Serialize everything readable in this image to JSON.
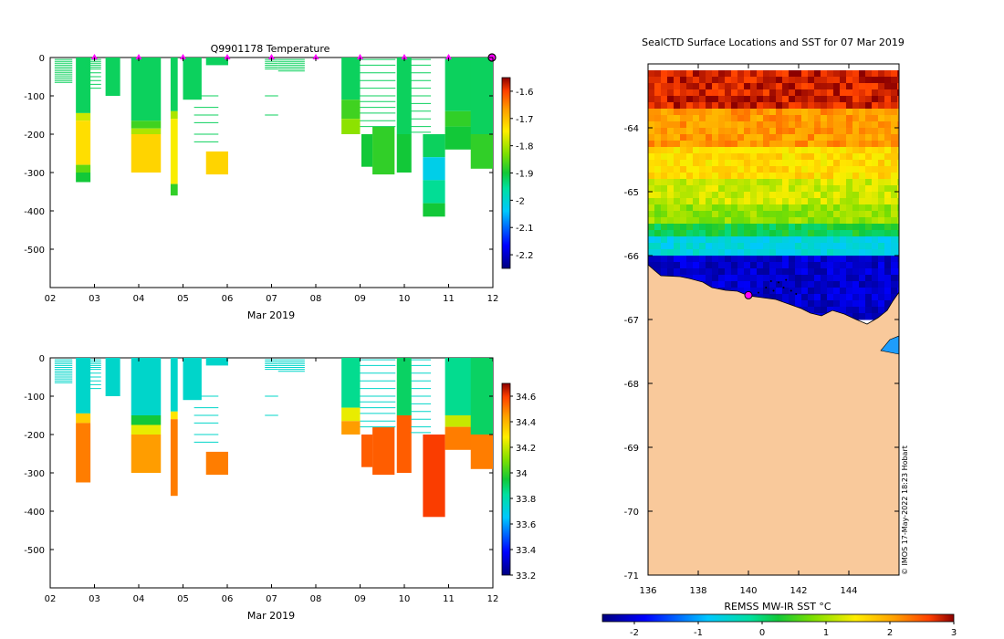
{
  "chart_data": [
    {
      "id": "temperature",
      "type": "heatmap",
      "title": "Q9901178  Temperature",
      "xlabel": "Mar 2019",
      "ylabel": "",
      "x_ticks": [
        "02",
        "03",
        "04",
        "05",
        "06",
        "07",
        "08",
        "09",
        "10",
        "11",
        "12"
      ],
      "xlim": [
        2,
        12
      ],
      "y_ticks": [
        0,
        -100,
        -200,
        -300,
        -400,
        -500
      ],
      "ylim": [
        -600,
        0
      ],
      "colorbar": {
        "ticks": [
          -1.6,
          -1.7,
          -1.8,
          -1.9,
          -2,
          -2.1,
          -2.2
        ],
        "range": [
          -2.25,
          -1.55
        ]
      },
      "surface_markers_day": [
        3,
        4,
        5,
        6,
        7,
        8,
        9,
        10,
        11
      ],
      "profiles": [
        {
          "day": 2.58,
          "width": 0.33,
          "max_depth": -325,
          "bands": [
            [
              0,
              -145,
              -1.92
            ],
            [
              -145,
              -165,
              -1.78
            ],
            [
              -165,
              -280,
              -1.73
            ],
            [
              -280,
              -300,
              -1.85
            ],
            [
              -300,
              -325,
              -1.9
            ]
          ]
        },
        {
          "day": 3.25,
          "width": 0.33,
          "max_depth": -100,
          "bands": [
            [
              0,
              -100,
              -1.92
            ]
          ]
        },
        {
          "day": 3.83,
          "width": 0.67,
          "max_depth": -300,
          "bands": [
            [
              0,
              -165,
              -1.92
            ],
            [
              -165,
              -185,
              -1.87
            ],
            [
              -185,
              -200,
              -1.8
            ],
            [
              -200,
              -300,
              -1.72
            ]
          ]
        },
        {
          "day": 4.72,
          "width": 0.16,
          "max_depth": -360,
          "bands": [
            [
              0,
              -140,
              -1.92
            ],
            [
              -140,
              -160,
              -1.8
            ],
            [
              -160,
              -330,
              -1.75
            ],
            [
              -330,
              -360,
              -1.88
            ]
          ]
        },
        {
          "day": 5.0,
          "width": 0.42,
          "max_depth": -110,
          "bands": [
            [
              0,
              -110,
              -1.92
            ]
          ]
        },
        {
          "day": 5.52,
          "width": 0.5,
          "max_depth": -20,
          "bands": [
            [
              0,
              -20,
              -1.92
            ]
          ]
        },
        {
          "day": 5.52,
          "width": 0.5,
          "max_depth": -305,
          "bands": [
            [
              -245,
              -305,
              -1.72
            ]
          ]
        },
        {
          "day": 8.58,
          "width": 0.42,
          "max_depth": -200,
          "bands": [
            [
              0,
              -110,
              -1.92
            ],
            [
              -110,
              -160,
              -1.87
            ],
            [
              -160,
              -200,
              -1.82
            ]
          ]
        },
        {
          "day": 9.03,
          "width": 0.25,
          "max_depth": -285,
          "bands": [
            [
              -200,
              -285,
              -1.9
            ]
          ]
        },
        {
          "day": 9.28,
          "width": 0.5,
          "max_depth": -305,
          "bands": [
            [
              -180,
              -305,
              -1.88
            ]
          ]
        },
        {
          "day": 9.83,
          "width": 0.33,
          "max_depth": -300,
          "bands": [
            [
              0,
              -200,
              -1.92
            ],
            [
              -200,
              -300,
              -1.9
            ]
          ]
        },
        {
          "day": 10.42,
          "width": 0.5,
          "max_depth": -415,
          "bands": [
            [
              -200,
              -260,
              -1.92
            ],
            [
              -260,
              -320,
              -2.02
            ],
            [
              -320,
              -380,
              -1.95
            ],
            [
              -380,
              -415,
              -1.9
            ]
          ]
        },
        {
          "day": 10.92,
          "width": 0.6,
          "max_depth": -240,
          "bands": [
            [
              0,
              -140,
              -1.92
            ],
            [
              -140,
              -180,
              -1.88
            ],
            [
              -180,
              -240,
              -1.9
            ]
          ]
        },
        {
          "day": 11.5,
          "width": 0.5,
          "max_depth": -290,
          "bands": [
            [
              0,
              -200,
              -1.92
            ],
            [
              -200,
              -290,
              -1.88
            ]
          ]
        }
      ]
    },
    {
      "id": "salinity",
      "type": "heatmap",
      "title": "",
      "xlabel": "Mar 2019",
      "ylabel": "",
      "x_ticks": [
        "02",
        "03",
        "04",
        "05",
        "06",
        "07",
        "08",
        "09",
        "10",
        "11",
        "12"
      ],
      "xlim": [
        2,
        12
      ],
      "y_ticks": [
        0,
        -100,
        -200,
        -300,
        -400,
        -500
      ],
      "ylim": [
        -600,
        0
      ],
      "colorbar": {
        "ticks": [
          34.6,
          34.4,
          34.2,
          34,
          33.8,
          33.6,
          33.4,
          33.2
        ],
        "range": [
          33.2,
          34.7
        ]
      },
      "profiles": [
        {
          "day": 2.58,
          "width": 0.33,
          "max_depth": -325,
          "bands": [
            [
              0,
              -145,
              33.75
            ],
            [
              -145,
              -170,
              34.35
            ],
            [
              -170,
              -325,
              34.5
            ]
          ]
        },
        {
          "day": 3.25,
          "width": 0.33,
          "max_depth": -100,
          "bands": [
            [
              0,
              -100,
              33.75
            ]
          ]
        },
        {
          "day": 3.83,
          "width": 0.67,
          "max_depth": -300,
          "bands": [
            [
              0,
              -150,
              33.75
            ],
            [
              -150,
              -175,
              33.95
            ],
            [
              -175,
              -200,
              34.25
            ],
            [
              -200,
              -300,
              34.45
            ]
          ]
        },
        {
          "day": 4.72,
          "width": 0.16,
          "max_depth": -360,
          "bands": [
            [
              0,
              -140,
              33.75
            ],
            [
              -140,
              -160,
              34.3
            ],
            [
              -160,
              -360,
              34.5
            ]
          ]
        },
        {
          "day": 5.0,
          "width": 0.42,
          "max_depth": -110,
          "bands": [
            [
              0,
              -110,
              33.75
            ]
          ]
        },
        {
          "day": 5.52,
          "width": 0.5,
          "max_depth": -20,
          "bands": [
            [
              0,
              -20,
              33.75
            ]
          ]
        },
        {
          "day": 5.52,
          "width": 0.5,
          "max_depth": -305,
          "bands": [
            [
              -245,
              -305,
              34.5
            ]
          ]
        },
        {
          "day": 8.58,
          "width": 0.42,
          "max_depth": -200,
          "bands": [
            [
              0,
              -130,
              33.85
            ],
            [
              -130,
              -165,
              34.25
            ],
            [
              -165,
              -200,
              34.45
            ]
          ]
        },
        {
          "day": 9.03,
          "width": 0.25,
          "max_depth": -285,
          "bands": [
            [
              -200,
              -285,
              34.55
            ]
          ]
        },
        {
          "day": 9.28,
          "width": 0.5,
          "max_depth": -305,
          "bands": [
            [
              -180,
              -305,
              34.55
            ]
          ]
        },
        {
          "day": 9.83,
          "width": 0.33,
          "max_depth": -300,
          "bands": [
            [
              0,
              -150,
              33.9
            ],
            [
              -150,
              -300,
              34.55
            ]
          ]
        },
        {
          "day": 10.42,
          "width": 0.5,
          "max_depth": -415,
          "bands": [
            [
              -200,
              -415,
              34.6
            ]
          ]
        },
        {
          "day": 10.92,
          "width": 0.6,
          "max_depth": -240,
          "bands": [
            [
              0,
              -150,
              33.85
            ],
            [
              -150,
              -180,
              34.2
            ],
            [
              -180,
              -240,
              34.5
            ]
          ]
        },
        {
          "day": 11.5,
          "width": 0.5,
          "max_depth": -290,
          "bands": [
            [
              0,
              -200,
              33.9
            ],
            [
              -200,
              -290,
              34.5
            ]
          ]
        }
      ]
    },
    {
      "id": "sst_map",
      "type": "heatmap",
      "title": "SealCTD Surface Locations and SST for 07 Mar 2019",
      "xlabel": "REMSS MW-IR SST °C",
      "x_ticks": [
        136,
        138,
        140,
        142,
        144
      ],
      "xlim": [
        136,
        146
      ],
      "y_ticks": [
        -64,
        -65,
        -66,
        -67,
        -68,
        -69,
        -70,
        -71
      ],
      "ylim": [
        -71,
        -63
      ],
      "colorbar": {
        "ticks": [
          -2,
          -1,
          0,
          1,
          2,
          3
        ],
        "range": [
          -2.5,
          3
        ]
      },
      "sst_zones": [
        {
          "lat_top": -63.1,
          "lat_bottom": -63.7,
          "sst": 2.8
        },
        {
          "lat_top": -63.7,
          "lat_bottom": -64.3,
          "sst": 2.1
        },
        {
          "lat_top": -64.3,
          "lat_bottom": -64.8,
          "sst": 1.6
        },
        {
          "lat_top": -64.8,
          "lat_bottom": -65.2,
          "sst": 1.2
        },
        {
          "lat_top": -65.2,
          "lat_bottom": -65.5,
          "sst": 0.9
        },
        {
          "lat_top": -65.5,
          "lat_bottom": -65.7,
          "sst": 0.2
        },
        {
          "lat_top": -65.7,
          "lat_bottom": -66.0,
          "sst": -0.6
        },
        {
          "lat_top": -66.0,
          "lat_bottom": -67.0,
          "sst": -2.1
        }
      ],
      "land_color": "#f9c99b",
      "seal_location": {
        "lon": 140.0,
        "lat": -66.62
      },
      "credit": "© IMOS 17-May-2022 18:23 Hobart"
    }
  ]
}
